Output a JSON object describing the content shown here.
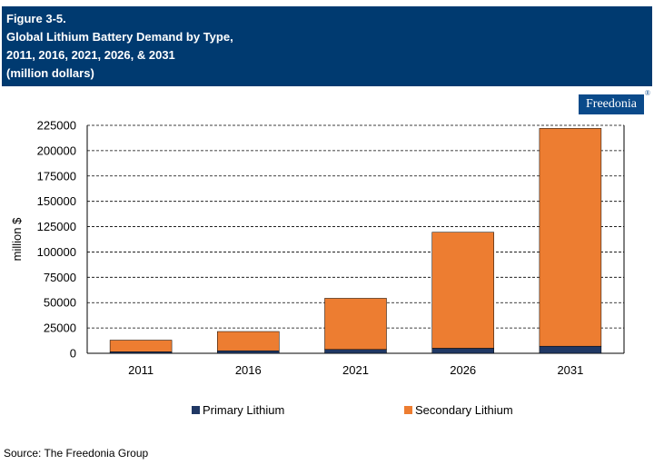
{
  "header": {
    "figure_label": "Figure 3-5.",
    "title_line1": "Global Lithium Battery Demand by Type,",
    "title_line2": "2011, 2016, 2021, 2026, & 2031",
    "title_line3": "(million dollars)"
  },
  "logo": {
    "text": "Freedonia",
    "mark": "®"
  },
  "source": "Source: The Freedonia Group",
  "colors": {
    "header_bg": "#003a70",
    "primary": "#203864",
    "secondary": "#ed7d31"
  },
  "chart_data": {
    "type": "bar",
    "stacked": true,
    "categories": [
      "2011",
      "2016",
      "2021",
      "2026",
      "2031"
    ],
    "series": [
      {
        "name": "Primary Lithium",
        "color": "#203864",
        "values": [
          1500,
          2500,
          3800,
          5000,
          7000
        ]
      },
      {
        "name": "Secondary Lithium",
        "color": "#ed7d31",
        "values": [
          11500,
          19000,
          50500,
          114500,
          215000
        ]
      }
    ],
    "ylabel": "million $",
    "xlabel": "",
    "ylim": [
      0,
      225000
    ],
    "yticks": [
      0,
      25000,
      50000,
      75000,
      100000,
      125000,
      150000,
      175000,
      200000,
      225000
    ],
    "grid": "horizontal dashed",
    "legend_position": "bottom"
  }
}
